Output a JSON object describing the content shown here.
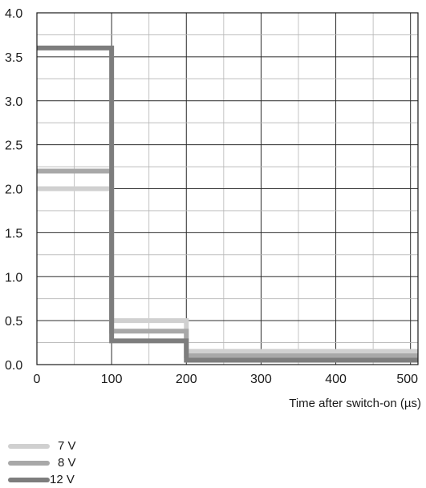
{
  "chart_data": {
    "type": "line",
    "xlabel": "Time after switch-on (µs)",
    "ylabel": "",
    "title": "",
    "xlim": [
      0,
      510
    ],
    "ylim": [
      0,
      4.0
    ],
    "x_ticks": [
      "0",
      "100",
      "200",
      "300",
      "400",
      "500"
    ],
    "y_ticks": [
      "0.0",
      "0.5",
      "1.0",
      "1.5",
      "2.0",
      "2.5",
      "3.0",
      "3.5",
      "4.0"
    ],
    "grid": true,
    "legend_position": "bottom-left",
    "series": [
      {
        "name": "7 V",
        "color": "#d0d0d0",
        "x": [
          0,
          100,
          100,
          200,
          200,
          510
        ],
        "y": [
          2.0,
          2.0,
          0.5,
          0.5,
          0.15,
          0.15
        ]
      },
      {
        "name": "8 V",
        "color": "#a8a8a8",
        "x": [
          0,
          100,
          100,
          200,
          200,
          510
        ],
        "y": [
          2.2,
          2.2,
          0.38,
          0.38,
          0.1,
          0.1
        ]
      },
      {
        "name": "12 V",
        "color": "#7d7d7d",
        "x": [
          0,
          100,
          100,
          200,
          200,
          510
        ],
        "y": [
          3.6,
          3.6,
          0.27,
          0.27,
          0.05,
          0.05
        ]
      }
    ]
  }
}
